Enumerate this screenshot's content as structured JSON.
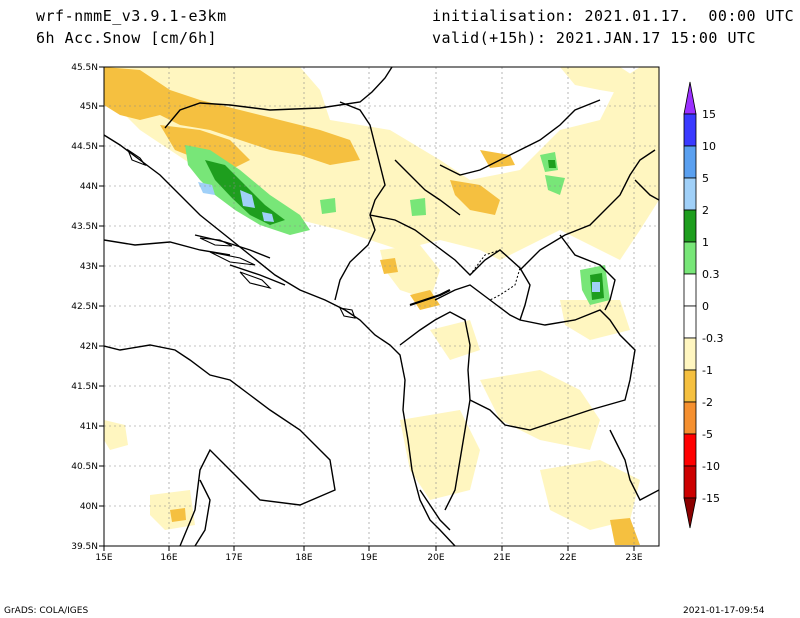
{
  "header": {
    "model": "wrf-nmmE_v3.9.1-e3km",
    "field": "6h Acc.Snow [cm/6h]",
    "init": "initialisation: 2021.01.17.  00:00 UTC",
    "valid": "valid(+15h): 2021.JAN.17 15:00 UTC"
  },
  "footer": {
    "credit": "GrADS: COLA/IGES",
    "timestamp": "2021-01-17-09:54"
  },
  "map": {
    "lon_ticks": [
      "15E",
      "16E",
      "17E",
      "18E",
      "19E",
      "20E",
      "21E",
      "22E",
      "23E"
    ],
    "lat_ticks": [
      "45.5N",
      "45N",
      "44.5N",
      "44N",
      "43.5N",
      "43N",
      "42.5N",
      "42N",
      "41.5N",
      "41N",
      "40.5N",
      "40N",
      "39.5N"
    ],
    "lon_range": [
      15,
      23.5
    ],
    "lat_range": [
      39.5,
      45.5
    ],
    "grid": true
  },
  "colorbar": {
    "labels": [
      "15",
      "10",
      "5",
      "2",
      "1",
      "0.3",
      "0",
      "-0.3",
      "-1",
      "-2",
      "-5",
      "-10",
      "-15"
    ],
    "colors": [
      "#9b30ff",
      "#3a3aff",
      "#5aa0f0",
      "#a0d0f8",
      "#1e9e1e",
      "#78e678",
      "#ffffff",
      "#ffffff",
      "#fff6c0",
      "#f5c040",
      "#f59030",
      "#ff0000",
      "#cc0000",
      "#8b0000"
    ]
  }
}
